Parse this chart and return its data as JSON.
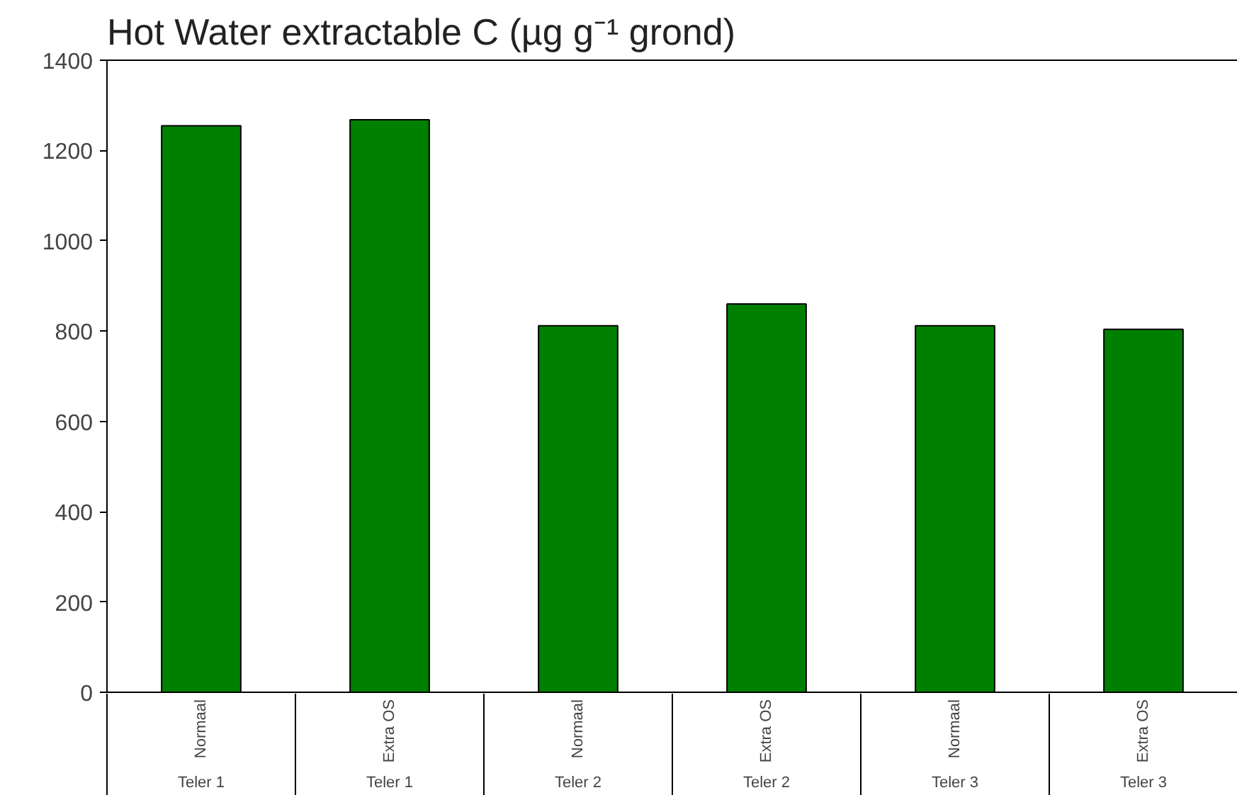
{
  "chart_data": {
    "type": "bar",
    "title": "Hot Water extractable C (µg g⁻¹ grond)",
    "categories": [
      "Normaal\nTeler 1",
      "Extra OS\nTeler 1",
      "Normaal\nTeler 2",
      "Extra OS\nTeler 2",
      "Normaal\nTeler 3",
      "Extra OS\nTeler 3"
    ],
    "values": [
      1255,
      1268,
      812,
      860,
      812,
      804
    ],
    "color": "#008000",
    "ylim": [
      0,
      1400
    ],
    "yticks": [
      0,
      200,
      400,
      600,
      800,
      1000,
      1200,
      1400
    ],
    "grid": false
  }
}
